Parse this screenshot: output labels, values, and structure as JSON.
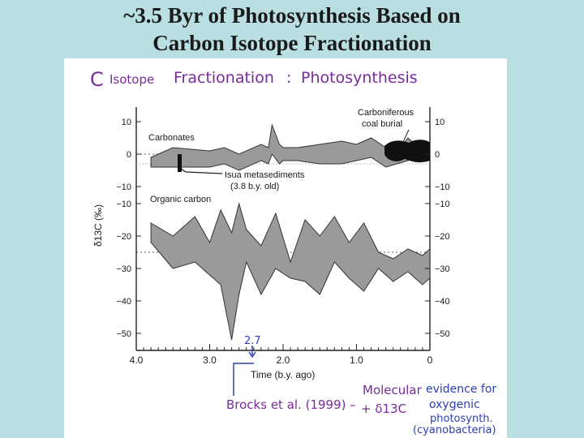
{
  "slide": {
    "title_line1": "~3.5 Byr of Photosynthesis Based on",
    "title_line2": "Carbon Isotope  Fractionation"
  },
  "colors": {
    "background": "#b9dfe3",
    "band_fill": "#9a9a9a",
    "coal_fill": "#111111",
    "handwriting_blue": "#2b3fb0",
    "handwriting_purple": "#7a2a9a"
  },
  "handwriting": {
    "header_c": "C",
    "header_isotope": "Isotope",
    "header_fractionation": "Fractionation",
    "header_colon": ":",
    "header_photosynthesis": "Photosynthesis",
    "marker_value": "2.7",
    "citation": "Brocks et al. (1999) –",
    "molecular_line1": "Molecular",
    "molecular_line2": "+ δ13C",
    "evidence_line1": "evidence for",
    "evidence_line2": "oxygenic",
    "evidence_line3": "photosynth.",
    "evidence_line4": "(cyanobacteria)"
  },
  "chart_data": {
    "type": "area",
    "xlabel": "Time (b.y. ago)",
    "ylabel": "δ13C (‰)",
    "x_ticks": [
      "4.0",
      "3.0",
      "2.0",
      "1.0",
      "0"
    ],
    "x_reversed": true,
    "xlim": [
      4.0,
      0
    ],
    "panels": [
      {
        "name": "Carbonates",
        "ylim": [
          -10,
          10
        ],
        "y_ticks": [
          "10",
          "0",
          "−10"
        ],
        "reference_line": 0,
        "band_x": [
          3.8,
          3.5,
          3.0,
          2.8,
          2.6,
          2.3,
          2.2,
          2.15,
          2.05,
          2.0,
          1.8,
          1.5,
          1.2,
          1.0,
          0.8,
          0.6,
          0.45,
          0.3,
          0.2,
          0.1,
          0
        ],
        "band_upper": [
          -1,
          2,
          1,
          2,
          0,
          3,
          2,
          9,
          3,
          2,
          2,
          3,
          4,
          3,
          5,
          2,
          0,
          5,
          3,
          4,
          3
        ],
        "band_lower": [
          -4,
          -4,
          -4,
          -3,
          -5,
          -2,
          -3,
          0,
          -3,
          -2,
          -2,
          -3,
          -3,
          -2,
          -1,
          -4,
          -3,
          -2,
          -1,
          -1,
          -2
        ],
        "annotations": [
          "Carbonates",
          "Isua metasediments",
          "(3.8 b.y. old)",
          "Carboniferous",
          "coal burial"
        ]
      },
      {
        "name": "Organic carbon",
        "ylim": [
          -55,
          -8
        ],
        "y_ticks": [
          "−10",
          "−20",
          "−30",
          "−40",
          "−50"
        ],
        "reference_line": -25,
        "band_x": [
          3.8,
          3.5,
          3.2,
          3.0,
          2.85,
          2.7,
          2.6,
          2.5,
          2.3,
          2.1,
          1.9,
          1.7,
          1.5,
          1.3,
          1.1,
          0.9,
          0.7,
          0.5,
          0.3,
          0.1,
          0
        ],
        "band_upper": [
          -16,
          -20,
          -14,
          -22,
          -12,
          -19,
          -10,
          -18,
          -23,
          -13,
          -28,
          -15,
          -20,
          -14,
          -22,
          -16,
          -25,
          -27,
          -24,
          -26,
          -24
        ],
        "band_lower": [
          -22,
          -30,
          -28,
          -32,
          -35,
          -52,
          -38,
          -28,
          -38,
          -30,
          -33,
          -34,
          -38,
          -28,
          -33,
          -37,
          -30,
          -34,
          -31,
          -35,
          -33
        ],
        "annotations": [
          "Organic carbon"
        ]
      }
    ]
  }
}
